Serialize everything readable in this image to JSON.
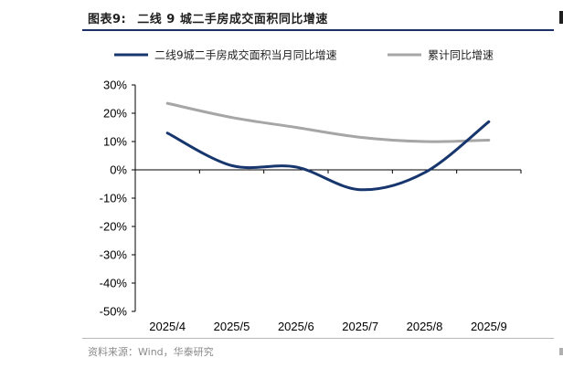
{
  "figure": {
    "label": "图表9:",
    "title": "二线 9 城二手房成交面积同比增速",
    "source": "资料来源：Wind，华泰研究"
  },
  "colors": {
    "series_primary": "#17366e",
    "series_secondary": "#a6a6a6",
    "accent_rule": "#1c2f66"
  },
  "chart_data": {
    "type": "line",
    "categories": [
      "2025/4",
      "2025/5",
      "2025/6",
      "2025/7",
      "2025/8",
      "2025/9"
    ],
    "series": [
      {
        "name": "二线9城二手房成交面积当月同比增速",
        "values": [
          13,
          1.5,
          1,
          -7,
          -1,
          17
        ]
      },
      {
        "name": "累计同比增速",
        "values": [
          23.5,
          18.5,
          15,
          11.5,
          10,
          10.5
        ]
      }
    ],
    "ylim": [
      -50,
      30
    ],
    "yticks": [
      30,
      20,
      10,
      0,
      -10,
      -20,
      -30,
      -40,
      -50
    ],
    "ytick_labels": [
      "30%",
      "20%",
      "10%",
      "0%",
      "-10%",
      "-20%",
      "-30%",
      "-40%",
      "-50%"
    ],
    "xlabel": "",
    "ylabel": "",
    "grid": false,
    "legend_position": "top"
  }
}
